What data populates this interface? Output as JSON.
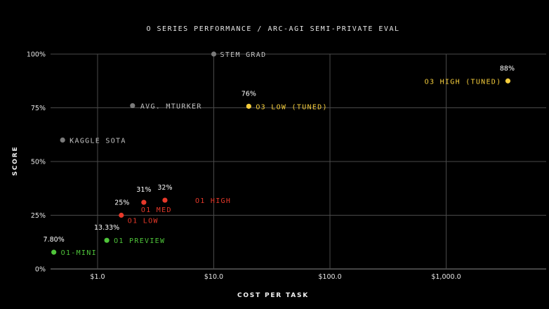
{
  "chart_data": {
    "type": "scatter",
    "title": "O SERIES PERFORMANCE / ARC-AGI SEMI-PRIVATE EVAL",
    "xlabel": "COST PER TASK",
    "ylabel": "SCORE",
    "xscale": "log",
    "xlim": [
      0.4,
      5000
    ],
    "ylim": [
      0,
      100
    ],
    "x_ticks": [
      {
        "value": 1,
        "label": "$1.0"
      },
      {
        "value": 10,
        "label": "$10.0"
      },
      {
        "value": 100,
        "label": "$100.0"
      },
      {
        "value": 1000,
        "label": "$1,000.0"
      }
    ],
    "y_ticks": [
      {
        "value": 0,
        "label": "0%"
      },
      {
        "value": 25,
        "label": "25%"
      },
      {
        "value": 50,
        "label": "50%"
      },
      {
        "value": 75,
        "label": "75%"
      },
      {
        "value": 100,
        "label": "100%"
      }
    ],
    "grid": true,
    "legend": "none",
    "colors": {
      "background": "#000000",
      "grid": "#4a4a4a",
      "baseline": "#8a8a8a",
      "o1-mini": "#4fc53a",
      "o1": "#e8392a",
      "o3": "#f5cd3c",
      "reference": "#7a7a7a"
    },
    "points": [
      {
        "name": "STEM GRAD",
        "x": 10,
        "y": 100,
        "group": "reference"
      },
      {
        "name": "AVG. MTURKER",
        "x": 2,
        "y": 76,
        "group": "reference"
      },
      {
        "name": "KAGGLE SOTA",
        "x": 0.5,
        "y": 60,
        "group": "reference"
      },
      {
        "name": "O1-MINI",
        "x": 0.42,
        "y": 7.8,
        "value_label": "7.80%",
        "group": "o1-mini"
      },
      {
        "name": "O1 PREVIEW",
        "x": 1.2,
        "y": 13.33,
        "value_label": "13.33%",
        "group": "o1-mini"
      },
      {
        "name": "O1 LOW",
        "x": 1.6,
        "y": 25,
        "value_label": "25%",
        "group": "o1"
      },
      {
        "name": "O1 MED",
        "x": 2.5,
        "y": 31,
        "value_label": "31%",
        "group": "o1"
      },
      {
        "name": "O1 HIGH",
        "x": 3.8,
        "y": 32,
        "value_label": "32%",
        "group": "o1"
      },
      {
        "name": "O3 LOW (TUNED)",
        "x": 20,
        "y": 75.7,
        "value_label": "76%",
        "group": "o3"
      },
      {
        "name": "O3 HIGH (TUNED)",
        "x": 3400,
        "y": 87.5,
        "value_label": "88%",
        "group": "o3"
      }
    ]
  }
}
